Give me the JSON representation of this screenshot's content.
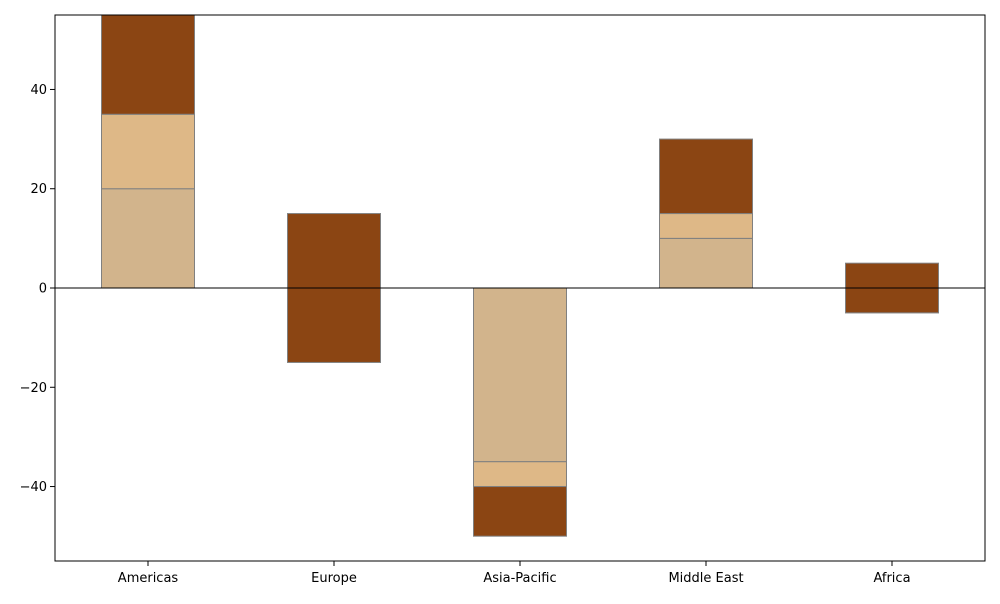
{
  "chart_data": {
    "type": "bar",
    "stacked": true,
    "categories": [
      "Americas",
      "Europe",
      "Asia-Pacific",
      "Middle East",
      "Africa"
    ],
    "series": [
      {
        "color": "#D2B48C",
        "values": [
          20,
          0,
          -35,
          10,
          0
        ]
      },
      {
        "color": "#DEB887",
        "values": [
          15,
          0,
          -5,
          5,
          -5
        ]
      },
      {
        "color": "#8B4513",
        "values": [
          20,
          30,
          -10,
          15,
          10
        ]
      }
    ],
    "bases": [
      0,
      -15,
      0,
      0,
      0
    ],
    "ylim": [
      -55,
      55
    ],
    "yticks": [
      -40,
      -20,
      0,
      20,
      40
    ],
    "zero_line": true,
    "bar_edge_color": "#808080",
    "grid": false,
    "title": "",
    "xlabel": "",
    "ylabel": ""
  }
}
